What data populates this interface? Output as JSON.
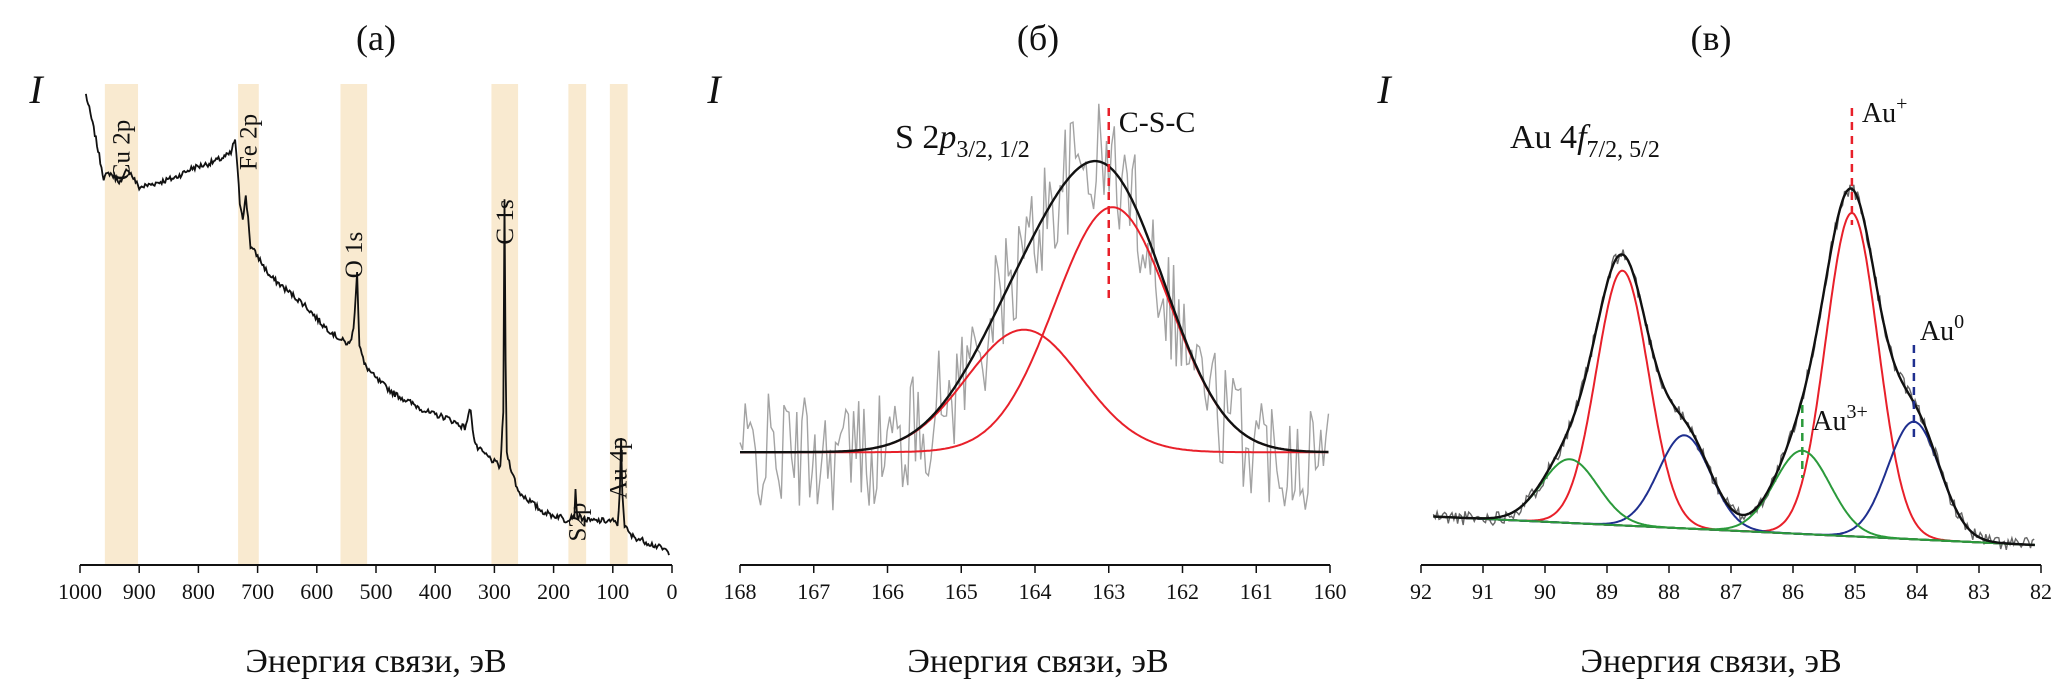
{
  "chart_data": [
    {
      "type": "line",
      "panel_label": "(а)",
      "ylabel": "I",
      "xlabel": "Энергия связи, эВ",
      "xlim": [
        1000,
        0
      ],
      "xticks": [
        "1000",
        "900",
        "800",
        "700",
        "600",
        "500",
        "400",
        "300",
        "200",
        "100",
        "0"
      ],
      "bands": [
        {
          "label": "Cu 2p",
          "from": 958,
          "to": 902
        },
        {
          "label": "Fe 2p",
          "from": 733,
          "to": 698
        },
        {
          "label": "O 1s",
          "from": 560,
          "to": 515
        },
        {
          "label": "C 1s",
          "from": 305,
          "to": 260
        },
        {
          "label": "S2p",
          "from": 175,
          "to": 145
        },
        {
          "label": "Au 4p",
          "from": 105,
          "to": 75
        }
      ],
      "series": [
        {
          "name": "survey spectrum",
          "color": "#111111",
          "x": [
            990,
            975,
            960,
            950,
            930,
            920,
            900,
            870,
            840,
            810,
            780,
            760,
            745,
            738,
            730,
            725,
            720,
            716,
            712,
            700,
            680,
            650,
            620,
            590,
            560,
            545,
            538,
            532,
            528,
            520,
            500,
            470,
            440,
            410,
            380,
            350,
            340,
            335,
            330,
            310,
            290,
            285,
            283,
            281,
            279,
            275,
            260,
            240,
            220,
            200,
            190,
            180,
            170,
            165,
            163,
            160,
            140,
            120,
            100,
            92,
            88,
            86,
            84,
            80,
            70,
            50,
            30,
            10,
            5
          ],
          "y": [
            0.95,
            0.87,
            0.78,
            0.79,
            0.77,
            0.8,
            0.76,
            0.77,
            0.78,
            0.8,
            0.81,
            0.82,
            0.83,
            0.86,
            0.73,
            0.7,
            0.74,
            0.7,
            0.64,
            0.62,
            0.58,
            0.55,
            0.52,
            0.48,
            0.45,
            0.44,
            0.47,
            0.59,
            0.44,
            0.4,
            0.37,
            0.34,
            0.32,
            0.3,
            0.29,
            0.27,
            0.31,
            0.25,
            0.23,
            0.21,
            0.19,
            0.3,
            0.74,
            0.4,
            0.22,
            0.2,
            0.14,
            0.12,
            0.1,
            0.09,
            0.09,
            0.08,
            0.09,
            0.09,
            0.14,
            0.09,
            0.08,
            0.08,
            0.08,
            0.07,
            0.14,
            0.25,
            0.14,
            0.07,
            0.05,
            0.04,
            0.03,
            0.02,
            0.01
          ]
        }
      ]
    },
    {
      "type": "line",
      "panel_label": "(б)",
      "ylabel": "I",
      "xlabel": "Энергия связи, эВ",
      "xlim": [
        168,
        160
      ],
      "xticks": [
        "168",
        "167",
        "166",
        "165",
        "164",
        "163",
        "162",
        "161",
        "160"
      ],
      "annotation": {
        "main": "S 2",
        "italic": "p",
        "sub": "3/2, 1/2"
      },
      "reference_line": {
        "x": 163.0,
        "label": "C-S-C",
        "color": "#e8202a"
      },
      "baseline": 0.22,
      "series": [
        {
          "name": "fit envelope",
          "color": "#111111",
          "kind": "gaussian-sum"
        },
        {
          "name": "S 2p3/2",
          "color": "#e8202a",
          "center": 162.95,
          "height": 0.5,
          "sigma": 0.78
        },
        {
          "name": "S 2p1/2",
          "color": "#e8202a",
          "center": 164.15,
          "height": 0.25,
          "sigma": 0.78
        },
        {
          "name": "experimental",
          "color": "#a3a3a3",
          "kind": "noisy"
        }
      ]
    },
    {
      "type": "line",
      "panel_label": "(в)",
      "ylabel": "I",
      "xlabel": "Энергия связи, эВ",
      "xlim": [
        92,
        82
      ],
      "xticks": [
        "92",
        "91",
        "90",
        "89",
        "88",
        "87",
        "86",
        "85",
        "84",
        "83",
        "82"
      ],
      "annotation": {
        "main": "Au 4",
        "italic": "f",
        "sub": "7/2, 5/2"
      },
      "reference_lines": [
        {
          "x": 85.05,
          "label": "Au",
          "sup": "+",
          "color": "#e8202a"
        },
        {
          "x": 84.05,
          "label": "Au",
          "sup": "0",
          "color": "#1f2f8f"
        },
        {
          "x": 85.85,
          "label": "Au",
          "sup": "3+",
          "color": "#2b9a3b"
        }
      ],
      "baseline": {
        "x": [
          92,
          82
        ],
        "y": [
          0.09,
          0.03
        ]
      },
      "series": [
        {
          "name": "fit envelope",
          "color": "#111111",
          "kind": "gaussian-sum"
        },
        {
          "name": "Au+ 4f7/2",
          "color": "#e8202a",
          "center": 85.05,
          "height": 0.66,
          "sigma": 0.42
        },
        {
          "name": "Au+ 4f5/2",
          "color": "#e8202a",
          "center": 88.75,
          "height": 0.52,
          "sigma": 0.42
        },
        {
          "name": "Au0 4f7/2",
          "color": "#1f2f8f",
          "center": 84.05,
          "height": 0.24,
          "sigma": 0.42
        },
        {
          "name": "Au0 4f5/2",
          "color": "#1f2f8f",
          "center": 87.75,
          "height": 0.19,
          "sigma": 0.42
        },
        {
          "name": "Au3+ 4f7/2",
          "color": "#2b9a3b",
          "center": 85.85,
          "height": 0.17,
          "sigma": 0.45
        },
        {
          "name": "Au3+ 4f5/2",
          "color": "#2b9a3b",
          "center": 89.6,
          "height": 0.13,
          "sigma": 0.45
        },
        {
          "name": "experimental",
          "color": "#666666",
          "kind": "noisy"
        }
      ]
    }
  ]
}
